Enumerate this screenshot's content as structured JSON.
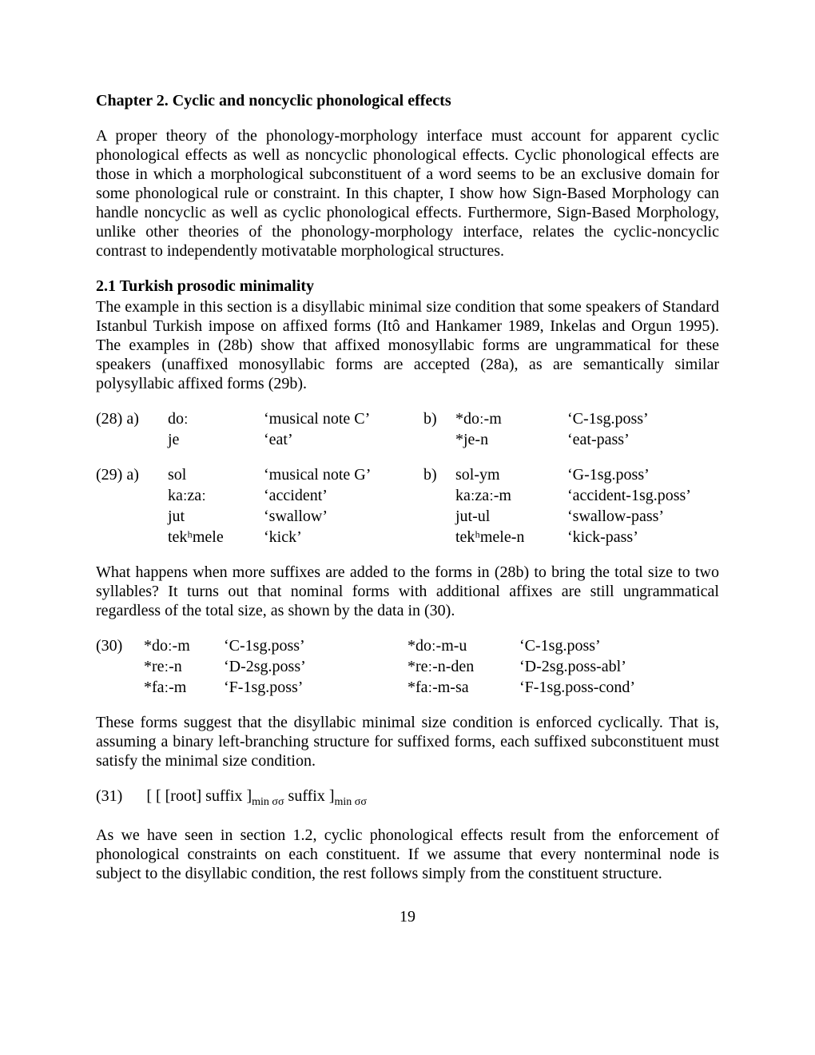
{
  "chapter_title": "Chapter  2.  Cyclic and noncyclic phonological effects",
  "para1": "A proper theory of the phonology-morphology interface must account for apparent cyclic phonological effects as well as noncyclic phonological effects. Cyclic phonological effects are those in which a morphological subconstituent of a word seems to be an exclusive domain for some phonological rule or constraint. In this chapter, I show how Sign-Based Morphology can handle noncyclic as well as cyclic phonological effects. Furthermore, Sign-Based Morphology, unlike other theories of the phonology-morphology interface, relates the cyclic-noncyclic contrast to independently motivatable morphological structures.",
  "section21_title": "2.1  Turkish prosodic minimality",
  "para2": "The example in this section is a disyllabic minimal size condition that some speakers of Standard Istanbul Turkish impose on affixed forms (Itô and Hankamer 1989, Inkelas and Orgun 1995). The examples in (28b) show that affixed monosyllabic forms are ungrammatical for these speakers (unaffixed monosyllabic forms are accepted (28a), as are semantically similar polysyllabic affixed forms (29b).",
  "ex28": {
    "num_a": "(28)  a)",
    "rows": [
      {
        "form_a": "doː",
        "gloss_a": "‘musical note C’",
        "b": "b)",
        "form_b": "*doː-m",
        "gloss_b": "‘C-1sg.poss’"
      },
      {
        "form_a": "je",
        "gloss_a": "‘eat’",
        "b": "",
        "form_b": "*je-n",
        "gloss_b": "‘eat-pass’"
      }
    ]
  },
  "ex29": {
    "num_a": "(29)  a)",
    "rows": [
      {
        "form_a": "sol",
        "gloss_a": "‘musical note G’",
        "b": "b)",
        "form_b": "sol-ym",
        "gloss_b": "‘G-1sg.poss’"
      },
      {
        "form_a": "kaːzaː",
        "gloss_a": "‘accident’",
        "b": "",
        "form_b": "kaːzaː-m",
        "gloss_b": "‘accident-1sg.poss’"
      },
      {
        "form_a": "jut",
        "gloss_a": "‘swallow’",
        "b": "",
        "form_b": "jut-ul",
        "gloss_b": "‘swallow-pass’"
      },
      {
        "form_a": "tekʰmele",
        "gloss_a": "‘kick’",
        "b": "",
        "form_b": "tekʰmele-n",
        "gloss_b": "‘kick-pass’"
      }
    ]
  },
  "para3": "What happens when more suffixes are added to the forms in (28b) to bring the total size to two syllables? It turns out that nominal forms with additional affixes are still ungrammatical regardless of the total size, as shown by the data in (30).",
  "ex30": {
    "num": "(30)",
    "rows": [
      {
        "form_a": "*doː-m",
        "gloss_a": "‘C-1sg.poss’",
        "form_b": "*doː-m-u",
        "gloss_b": "‘C-1sg.poss’"
      },
      {
        "form_a": "*reː-n",
        "gloss_a": "‘D-2sg.poss’",
        "form_b": "*reː-n-den",
        "gloss_b": "‘D-2sg.poss-abl’"
      },
      {
        "form_a": "*faː-m",
        "gloss_a": "‘F-1sg.poss’",
        "form_b": "*faː-m-sa",
        "gloss_b": "‘F-1sg.poss-cond’"
      }
    ]
  },
  "para4": "These forms suggest that the disyllabic minimal size condition is enforced cyclically. That is, assuming a binary left-branching structure for suffixed forms, each suffixed subconstituent must satisfy the minimal size condition.",
  "ex31": {
    "num": "(31)",
    "prefix": "[ [ [root] suffix ]",
    "sub1": "min σσ",
    "mid": " suffix ]",
    "sub2": "min σσ"
  },
  "para5": "As we have seen in section 1.2, cyclic phonological effects result from the enforcement of phonological constraints on each constituent. If we assume that every nonterminal node is subject to the disyllabic condition, the rest follows simply from the constituent structure.",
  "page_number": "19"
}
